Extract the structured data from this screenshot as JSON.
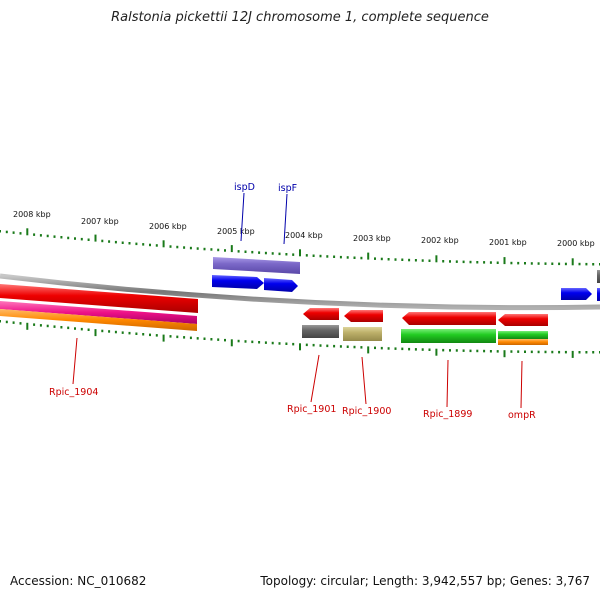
{
  "title": "Ralstonia pickettii 12J chromosome 1, complete sequence",
  "footer": {
    "accession": "Accession: NC_010682",
    "summary": "Topology: circular; Length: 3,942,557 bp; Genes: 3,767"
  },
  "kbp_labels": [
    "2008 kbp",
    "2007 kbp",
    "2006 kbp",
    "2005 kbp",
    "2004 kbp",
    "2003 kbp",
    "2002 kbp",
    "2001 kbp",
    "2000 kbp"
  ],
  "top_gene_labels": [
    "ispD",
    "ispF"
  ],
  "bottom_gene_labels": [
    "Rpic_1904",
    "Rpic_1901",
    "Rpic_1900",
    "Rpic_1899",
    "ompR"
  ],
  "colors": {
    "tick": "#1a7a1a",
    "backbone": "#8a8a8a",
    "top_label": "#0000aa",
    "bottom_label": "#cc0000",
    "red": "#ee0000",
    "blue": "#0000ee",
    "purple": "#7b68c8",
    "magenta": "#ee1188",
    "orange": "#ff8800",
    "gray": "#666666",
    "khaki": "#bdb06a",
    "green": "#22cc22"
  }
}
